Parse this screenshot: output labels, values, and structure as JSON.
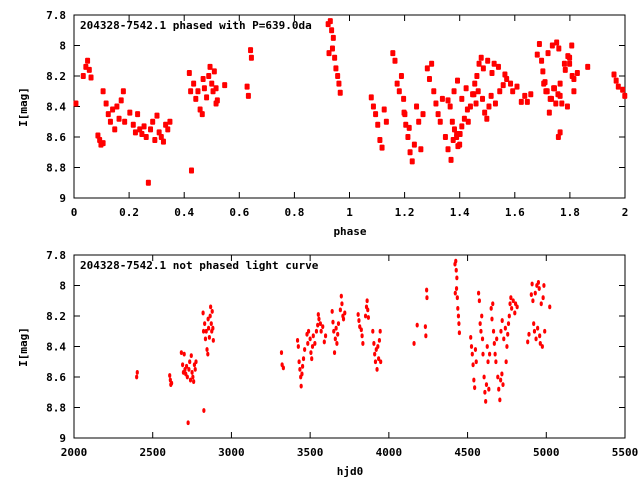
{
  "chart_data": [
    {
      "type": "scatter",
      "title": "204328-7542.1 phased with P=639.0da",
      "xlabel": "phase",
      "ylabel": "I[mag]",
      "xlim": [
        0,
        2
      ],
      "ylim": [
        9,
        7.8
      ],
      "y_inverted": true,
      "period": 639.0,
      "xticks": [
        "0",
        "0.2",
        "0.4",
        "0.6",
        "0.8",
        "1",
        "1.2",
        "1.4",
        "1.6",
        "1.8",
        "2"
      ],
      "xtick_values": [
        0,
        0.2,
        0.4,
        0.6,
        0.8,
        1,
        1.2,
        1.4,
        1.6,
        1.8,
        2
      ],
      "yticks": [
        "7.8",
        "8",
        "8.2",
        "8.4",
        "8.6",
        "8.8",
        "9"
      ],
      "ytick_values": [
        7.8,
        8,
        8.2,
        8.4,
        8.6,
        8.8,
        9
      ],
      "grid": false,
      "points_source": "phased from the light curve below (phase mod 2)",
      "color": "#ff0000"
    },
    {
      "type": "scatter",
      "title": "204328-7542.1 not phased light curve",
      "xlabel": "hjd0",
      "ylabel": "I[mag]",
      "xlim": [
        2000,
        5500
      ],
      "ylim": [
        9,
        7.8
      ],
      "y_inverted": true,
      "xticks": [
        "2000",
        "2500",
        "3000",
        "3500",
        "4000",
        "4500",
        "5000",
        "5500"
      ],
      "xtick_values": [
        2000,
        2500,
        3000,
        3500,
        4000,
        4500,
        5000,
        5500
      ],
      "yticks": [
        "7.8",
        "8",
        "8.2",
        "8.4",
        "8.6",
        "8.8",
        "9"
      ],
      "ytick_values": [
        7.8,
        8,
        8.2,
        8.4,
        8.6,
        8.8,
        9
      ],
      "grid": false,
      "color": "#ff0000",
      "points": [
        [
          2398,
          8.6
        ],
        [
          2402,
          8.57
        ],
        [
          2608,
          8.59
        ],
        [
          2612,
          8.62
        ],
        [
          2615,
          8.65
        ],
        [
          2620,
          8.64
        ],
        [
          2682,
          8.44
        ],
        [
          2690,
          8.52
        ],
        [
          2695,
          8.57
        ],
        [
          2700,
          8.45
        ],
        [
          2705,
          8.55
        ],
        [
          2710,
          8.58
        ],
        [
          2715,
          8.53
        ],
        [
          2720,
          8.6
        ],
        [
          2725,
          8.9
        ],
        [
          2730,
          8.55
        ],
        [
          2735,
          8.5
        ],
        [
          2740,
          8.62
        ],
        [
          2745,
          8.46
        ],
        [
          2750,
          8.57
        ],
        [
          2755,
          8.6
        ],
        [
          2760,
          8.63
        ],
        [
          2765,
          8.52
        ],
        [
          2770,
          8.55
        ],
        [
          2775,
          8.5
        ],
        [
          2820,
          8.18
        ],
        [
          2823,
          8.3
        ],
        [
          2825,
          8.82
        ],
        [
          2830,
          8.25
        ],
        [
          2835,
          8.35
        ],
        [
          2840,
          8.3
        ],
        [
          2845,
          8.42
        ],
        [
          2850,
          8.45
        ],
        [
          2852,
          8.22
        ],
        [
          2855,
          8.28
        ],
        [
          2860,
          8.34
        ],
        [
          2865,
          8.2
        ],
        [
          2868,
          8.14
        ],
        [
          2872,
          8.25
        ],
        [
          2875,
          8.3
        ],
        [
          2878,
          8.17
        ],
        [
          2882,
          8.28
        ],
        [
          2885,
          8.36
        ],
        [
          3318,
          8.44
        ],
        [
          3322,
          8.52
        ],
        [
          3330,
          8.54
        ],
        [
          3420,
          8.36
        ],
        [
          3425,
          8.4
        ],
        [
          3430,
          8.5
        ],
        [
          3435,
          8.55
        ],
        [
          3440,
          8.6
        ],
        [
          3443,
          8.66
        ],
        [
          3448,
          8.58
        ],
        [
          3452,
          8.53
        ],
        [
          3458,
          8.48
        ],
        [
          3465,
          8.42
        ],
        [
          3480,
          8.32
        ],
        [
          3485,
          8.38
        ],
        [
          3490,
          8.3
        ],
        [
          3500,
          8.35
        ],
        [
          3505,
          8.44
        ],
        [
          3510,
          8.48
        ],
        [
          3515,
          8.4
        ],
        [
          3520,
          8.33
        ],
        [
          3530,
          8.38
        ],
        [
          3540,
          8.3
        ],
        [
          3548,
          8.26
        ],
        [
          3552,
          8.19
        ],
        [
          3556,
          8.22
        ],
        [
          3565,
          8.25
        ],
        [
          3570,
          8.3
        ],
        [
          3580,
          8.27
        ],
        [
          3590,
          8.37
        ],
        [
          3598,
          8.33
        ],
        [
          3640,
          8.17
        ],
        [
          3645,
          8.24
        ],
        [
          3650,
          8.3
        ],
        [
          3655,
          8.44
        ],
        [
          3660,
          8.35
        ],
        [
          3665,
          8.28
        ],
        [
          3670,
          8.38
        ],
        [
          3675,
          8.32
        ],
        [
          3680,
          8.25
        ],
        [
          3692,
          8.16
        ],
        [
          3698,
          8.07
        ],
        [
          3702,
          8.12
        ],
        [
          3708,
          8.2
        ],
        [
          3712,
          8.22
        ],
        [
          3720,
          8.18
        ],
        [
          3805,
          8.19
        ],
        [
          3810,
          8.23
        ],
        [
          3815,
          8.27
        ],
        [
          3825,
          8.29
        ],
        [
          3830,
          8.33
        ],
        [
          3835,
          8.38
        ],
        [
          3852,
          8.2
        ],
        [
          3858,
          8.14
        ],
        [
          3862,
          8.1
        ],
        [
          3866,
          8.16
        ],
        [
          3870,
          8.21
        ],
        [
          3898,
          8.3
        ],
        [
          3905,
          8.38
        ],
        [
          3910,
          8.45
        ],
        [
          3915,
          8.5
        ],
        [
          3920,
          8.42
        ],
        [
          3925,
          8.55
        ],
        [
          3930,
          8.4
        ],
        [
          3935,
          8.48
        ],
        [
          3940,
          8.36
        ],
        [
          3945,
          8.3
        ],
        [
          3948,
          8.5
        ],
        [
          4160,
          8.38
        ],
        [
          4180,
          8.26
        ],
        [
          4232,
          8.27
        ],
        [
          4235,
          8.33
        ],
        [
          4240,
          8.03
        ],
        [
          4242,
          8.08
        ],
        [
          4420,
          7.86
        ],
        [
          4425,
          7.84
        ],
        [
          4428,
          7.9
        ],
        [
          4432,
          7.95
        ],
        [
          4422,
          8.05
        ],
        [
          4435,
          8.08
        ],
        [
          4438,
          8.15
        ],
        [
          4442,
          8.2
        ],
        [
          4445,
          8.25
        ],
        [
          4448,
          8.31
        ],
        [
          4430,
          8.02
        ],
        [
          4520,
          8.34
        ],
        [
          4525,
          8.4
        ],
        [
          4530,
          8.45
        ],
        [
          4535,
          8.52
        ],
        [
          4540,
          8.62
        ],
        [
          4545,
          8.67
        ],
        [
          4550,
          8.42
        ],
        [
          4555,
          8.5
        ],
        [
          4570,
          8.05
        ],
        [
          4575,
          8.1
        ],
        [
          4580,
          8.25
        ],
        [
          4585,
          8.3
        ],
        [
          4590,
          8.2
        ],
        [
          4595,
          8.35
        ],
        [
          4598,
          8.45
        ],
        [
          4605,
          8.6
        ],
        [
          4610,
          8.7
        ],
        [
          4615,
          8.76
        ],
        [
          4620,
          8.65
        ],
        [
          4625,
          8.4
        ],
        [
          4630,
          8.5
        ],
        [
          4635,
          8.68
        ],
        [
          4640,
          8.45
        ],
        [
          4650,
          8.15
        ],
        [
          4655,
          8.22
        ],
        [
          4660,
          8.12
        ],
        [
          4665,
          8.3
        ],
        [
          4670,
          8.38
        ],
        [
          4675,
          8.45
        ],
        [
          4680,
          8.5
        ],
        [
          4685,
          8.35
        ],
        [
          4692,
          8.6
        ],
        [
          4698,
          8.68
        ],
        [
          4705,
          8.75
        ],
        [
          4710,
          8.62
        ],
        [
          4718,
          8.58
        ],
        [
          4725,
          8.65
        ],
        [
          4712,
          8.3
        ],
        [
          4720,
          8.23
        ],
        [
          4730,
          8.35
        ],
        [
          4740,
          8.28
        ],
        [
          4745,
          8.5
        ],
        [
          4750,
          8.4
        ],
        [
          4755,
          8.32
        ],
        [
          4760,
          8.25
        ],
        [
          4765,
          8.2
        ],
        [
          4770,
          8.12
        ],
        [
          4775,
          8.08
        ],
        [
          4780,
          8.15
        ],
        [
          4790,
          8.1
        ],
        [
          4800,
          8.18
        ],
        [
          4805,
          8.12
        ],
        [
          4815,
          8.14
        ],
        [
          4882,
          8.37
        ],
        [
          4890,
          8.32
        ],
        [
          4905,
          8.06
        ],
        [
          4910,
          7.99
        ],
        [
          4915,
          8.1
        ],
        [
          4920,
          8.25
        ],
        [
          4925,
          8.3
        ],
        [
          4930,
          8.05
        ],
        [
          4935,
          8.35
        ],
        [
          4940,
          8.0
        ],
        [
          4945,
          8.28
        ],
        [
          4950,
          7.98
        ],
        [
          4955,
          8.02
        ],
        [
          4958,
          8.33
        ],
        [
          4962,
          8.38
        ],
        [
          4968,
          8.12
        ],
        [
          4975,
          8.4
        ],
        [
          4980,
          8.08
        ],
        [
          4985,
          8.0
        ],
        [
          4990,
          8.3
        ],
        [
          5022,
          8.14
        ]
      ]
    }
  ]
}
